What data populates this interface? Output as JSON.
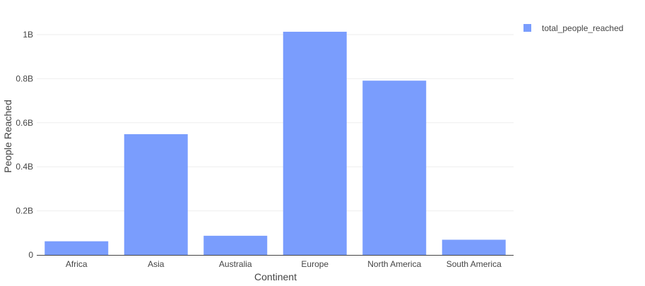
{
  "chart_data": {
    "type": "bar",
    "categories": [
      "Africa",
      "Asia",
      "Australia",
      "Europe",
      "North America",
      "South America"
    ],
    "series": [
      {
        "name": "total_people_reached",
        "values": [
          62000000,
          548000000,
          87000000,
          1013000000,
          791000000,
          69000000
        ]
      }
    ],
    "xlabel": "Continent",
    "ylabel": "People Reached",
    "ylim": [
      0,
      1.05
    ],
    "y_ticks": [
      {
        "value": 0,
        "label": "0"
      },
      {
        "value": 200000000,
        "label": "0.2B"
      },
      {
        "value": 400000000,
        "label": "0.4B"
      },
      {
        "value": 600000000,
        "label": "0.6B"
      },
      {
        "value": 800000000,
        "label": "0.8B"
      },
      {
        "value": 1000000000,
        "label": "1B"
      }
    ],
    "bar_color": "#7a9dfd",
    "grid": true,
    "legend_position": "top-right"
  }
}
